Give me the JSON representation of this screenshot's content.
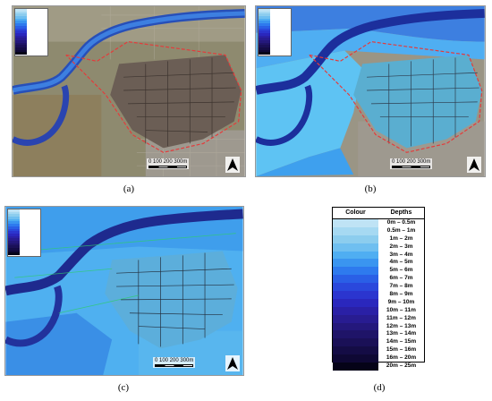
{
  "panels": [
    {
      "id": "a",
      "caption": "(a)",
      "scale_label": "0    100   200   300m"
    },
    {
      "id": "b",
      "caption": "(b)",
      "scale_label": "0    100   200   300m"
    },
    {
      "id": "c",
      "caption": "(c)",
      "scale_label": "0    100   200   300m"
    }
  ],
  "legend": {
    "header_colour": "Colour",
    "header_depths": "Depths",
    "caption": "(d)",
    "items": [
      {
        "label": "0m – 0.5m",
        "color": "#bfe3f5"
      },
      {
        "label": "0.5m – 1m",
        "color": "#a6d9f2"
      },
      {
        "label": "1m – 2m",
        "color": "#8ccdee"
      },
      {
        "label": "2m – 3m",
        "color": "#6fbff0"
      },
      {
        "label": "3m – 4m",
        "color": "#4faef2"
      },
      {
        "label": "4m – 5m",
        "color": "#3a95f0"
      },
      {
        "label": "5m – 6m",
        "color": "#2e7aee"
      },
      {
        "label": "6m – 7m",
        "color": "#2a5fe6"
      },
      {
        "label": "7m – 8m",
        "color": "#2a48dc"
      },
      {
        "label": "8m – 9m",
        "color": "#2b35cf"
      },
      {
        "label": "9m – 10m",
        "color": "#2a27bd"
      },
      {
        "label": "10m – 11m",
        "color": "#2a20a6"
      },
      {
        "label": "11m – 12m",
        "color": "#281c91"
      },
      {
        "label": "12m – 13m",
        "color": "#24187c"
      },
      {
        "label": "13m – 14m",
        "color": "#1f1468"
      },
      {
        "label": "14m – 15m",
        "color": "#1a1057"
      },
      {
        "label": "15m – 16m",
        "color": "#140c45"
      },
      {
        "label": "16m – 20m",
        "color": "#0e0834"
      },
      {
        "label": "20m – 25m",
        "color": "#050318"
      }
    ]
  },
  "north_arrow": "north-arrow-icon"
}
